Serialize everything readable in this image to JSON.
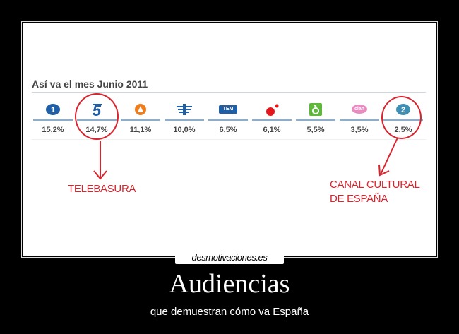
{
  "poster": {
    "heading": "Así va el mes Junio 2011",
    "channels": [
      {
        "id": "la1",
        "share": "15,2%",
        "logo": "la1-logo-icon"
      },
      {
        "id": "telecinco",
        "share": "14,7%",
        "logo": "telecinco-logo-icon"
      },
      {
        "id": "antena3",
        "share": "11,1%",
        "logo": "antena3-logo-icon"
      },
      {
        "id": "forta",
        "share": "10,0%",
        "logo": "forta-logo-icon"
      },
      {
        "id": "tdt",
        "share": "6,5%",
        "logo": "tem-logo-icon"
      },
      {
        "id": "cuatro",
        "share": "6,1%",
        "logo": "cuatro-logo-icon"
      },
      {
        "id": "lasexta",
        "share": "5,5%",
        "logo": "lasexta-logo-icon"
      },
      {
        "id": "clan",
        "share": "3,5%",
        "logo": "clan-logo-icon"
      },
      {
        "id": "la2",
        "share": "2,5%",
        "logo": "la2-logo-icon"
      }
    ],
    "tem_label": "TEM",
    "clan_label": "clan",
    "callout_left": "TELEBASURA",
    "callout_right_line1": "CANAL CULTURAL",
    "callout_right_line2": "DE ESPAÑA",
    "accent_color": "#d9232d"
  },
  "brand": "desmotivaciones.es",
  "title": "Audiencias",
  "subtitle": "que demuestran cómo va España"
}
